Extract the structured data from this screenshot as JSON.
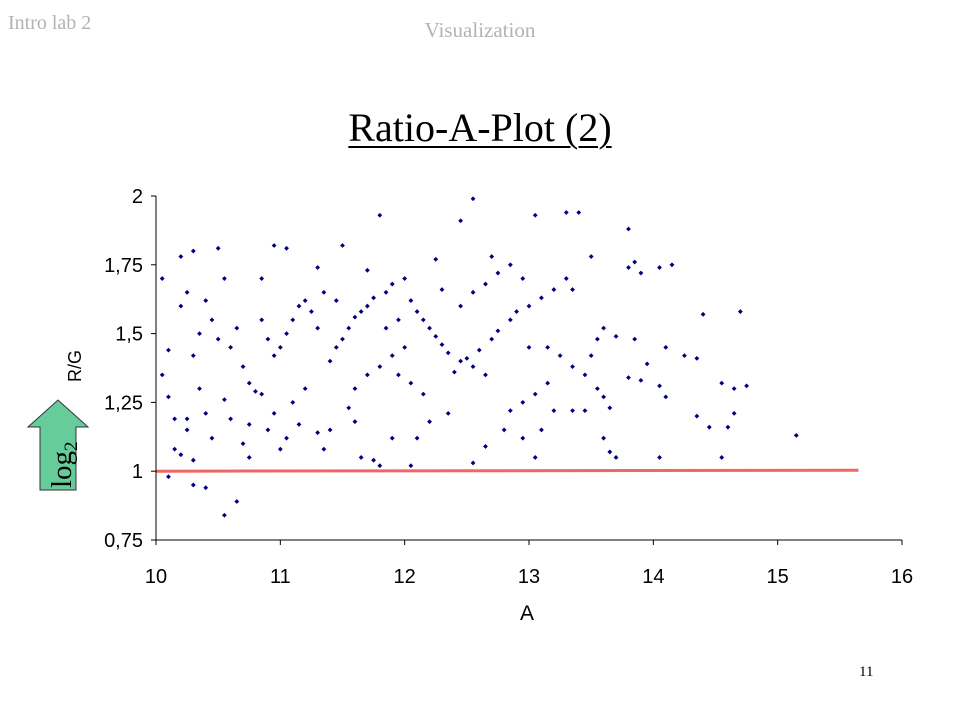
{
  "header": {
    "left": "Intro lab 2",
    "center": "Visualization"
  },
  "title": "Ratio-A-Plot (2)",
  "page_number": "11",
  "arrow": {
    "base": "log",
    "subscript": "2",
    "color": "#66cc99"
  },
  "chart_data": {
    "type": "scatter",
    "xlabel": "A",
    "ylabel": "R/G",
    "xlim": [
      10,
      16
    ],
    "ylim": [
      0.75,
      2
    ],
    "x_ticks": [
      10,
      11,
      12,
      13,
      14,
      15,
      16
    ],
    "y_ticks": [
      0.75,
      1,
      1.25,
      1.5,
      1.75,
      2
    ],
    "x_tick_labels": [
      "10",
      "11",
      "12",
      "13",
      "14",
      "15",
      "16"
    ],
    "y_tick_labels": [
      "0,75",
      "1",
      "1,25",
      "1,5",
      "1,75",
      "2"
    ],
    "grid": false,
    "marker_color": "#000080",
    "reference_line": {
      "y": 1,
      "x_from": 10,
      "x_to": 15.65,
      "color": "#ee6666"
    },
    "points": [
      [
        12.55,
        1.99
      ],
      [
        13.3,
        1.94
      ],
      [
        13.4,
        1.94
      ],
      [
        13.05,
        1.93
      ],
      [
        11.8,
        1.93
      ],
      [
        12.45,
        1.91
      ],
      [
        11.5,
        1.82
      ],
      [
        10.95,
        1.82
      ],
      [
        11.05,
        1.81
      ],
      [
        10.5,
        1.81
      ],
      [
        10.3,
        1.8
      ],
      [
        10.2,
        1.78
      ],
      [
        13.8,
        1.88
      ],
      [
        13.85,
        1.76
      ],
      [
        13.8,
        1.74
      ],
      [
        14.05,
        1.74
      ],
      [
        14.15,
        1.75
      ],
      [
        13.5,
        1.78
      ],
      [
        13.9,
        1.72
      ],
      [
        10.05,
        1.7
      ],
      [
        10.55,
        1.7
      ],
      [
        10.85,
        1.7
      ],
      [
        11.3,
        1.74
      ],
      [
        11.7,
        1.73
      ],
      [
        12.25,
        1.77
      ],
      [
        12.7,
        1.78
      ],
      [
        14.7,
        1.58
      ],
      [
        13.35,
        1.66
      ],
      [
        14.4,
        1.57
      ],
      [
        13.85,
        1.48
      ],
      [
        14.1,
        1.45
      ],
      [
        13.95,
        1.39
      ],
      [
        14.25,
        1.42
      ],
      [
        14.35,
        1.41
      ],
      [
        13.7,
        1.49
      ],
      [
        13.8,
        1.34
      ],
      [
        13.9,
        1.33
      ],
      [
        13.6,
        1.27
      ],
      [
        13.65,
        1.23
      ],
      [
        14.05,
        1.31
      ],
      [
        14.1,
        1.27
      ],
      [
        14.55,
        1.32
      ],
      [
        14.35,
        1.2
      ],
      [
        14.45,
        1.16
      ],
      [
        14.6,
        1.16
      ],
      [
        14.55,
        1.05
      ],
      [
        14.65,
        1.3
      ],
      [
        14.75,
        1.31
      ],
      [
        15.15,
        1.13
      ],
      [
        14.65,
        1.21
      ],
      [
        14.05,
        1.05
      ],
      [
        13.6,
        1.12
      ],
      [
        13.65,
        1.07
      ],
      [
        13.7,
        1.05
      ],
      [
        10.05,
        1.35
      ],
      [
        10.1,
        1.44
      ],
      [
        10.1,
        1.27
      ],
      [
        10.15,
        1.19
      ],
      [
        10.25,
        1.19
      ],
      [
        10.35,
        1.3
      ],
      [
        10.25,
        1.15
      ],
      [
        10.15,
        1.08
      ],
      [
        10.2,
        1.06
      ],
      [
        10.1,
        0.98
      ],
      [
        10.3,
        1.04
      ],
      [
        10.3,
        0.95
      ],
      [
        10.4,
        0.94
      ],
      [
        10.55,
        0.84
      ],
      [
        10.65,
        0.89
      ],
      [
        10.4,
        1.21
      ],
      [
        10.45,
        1.12
      ],
      [
        10.55,
        1.26
      ],
      [
        10.6,
        1.19
      ],
      [
        10.75,
        1.17
      ],
      [
        10.7,
        1.1
      ],
      [
        10.75,
        1.05
      ],
      [
        10.9,
        1.15
      ],
      [
        11.0,
        1.08
      ],
      [
        10.7,
        1.38
      ],
      [
        10.75,
        1.32
      ],
      [
        10.8,
        1.29
      ],
      [
        10.85,
        1.28
      ],
      [
        10.95,
        1.21
      ],
      [
        11.05,
        1.12
      ],
      [
        11.15,
        1.17
      ],
      [
        11.1,
        1.25
      ],
      [
        11.2,
        1.3
      ],
      [
        11.3,
        1.14
      ],
      [
        11.35,
        1.08
      ],
      [
        11.4,
        1.15
      ],
      [
        11.55,
        1.23
      ],
      [
        11.6,
        1.18
      ],
      [
        11.65,
        1.05
      ],
      [
        11.75,
        1.04
      ],
      [
        11.8,
        1.02
      ],
      [
        11.9,
        1.12
      ],
      [
        12.05,
        1.02
      ],
      [
        12.1,
        1.12
      ],
      [
        12.2,
        1.18
      ],
      [
        12.35,
        1.21
      ],
      [
        12.55,
        1.03
      ],
      [
        12.65,
        1.09
      ],
      [
        12.8,
        1.15
      ],
      [
        12.95,
        1.12
      ],
      [
        13.05,
        1.05
      ],
      [
        13.1,
        1.15
      ],
      [
        13.2,
        1.22
      ],
      [
        13.35,
        1.22
      ],
      [
        13.45,
        1.22
      ],
      [
        13.55,
        1.3
      ],
      [
        12.4,
        1.36
      ],
      [
        12.5,
        1.41
      ],
      [
        12.6,
        1.44
      ],
      [
        12.7,
        1.48
      ],
      [
        12.75,
        1.51
      ],
      [
        12.85,
        1.55
      ],
      [
        12.9,
        1.58
      ],
      [
        13.0,
        1.6
      ],
      [
        13.1,
        1.63
      ],
      [
        13.2,
        1.66
      ],
      [
        13.3,
        1.7
      ],
      [
        11.4,
        1.4
      ],
      [
        11.45,
        1.45
      ],
      [
        11.5,
        1.48
      ],
      [
        11.55,
        1.52
      ],
      [
        11.6,
        1.56
      ],
      [
        11.65,
        1.58
      ],
      [
        11.7,
        1.6
      ],
      [
        11.75,
        1.63
      ],
      [
        11.85,
        1.65
      ],
      [
        11.9,
        1.68
      ],
      [
        12.0,
        1.7
      ],
      [
        12.05,
        1.62
      ],
      [
        12.1,
        1.58
      ],
      [
        12.15,
        1.55
      ],
      [
        12.2,
        1.52
      ],
      [
        12.25,
        1.49
      ],
      [
        12.3,
        1.46
      ],
      [
        12.35,
        1.43
      ],
      [
        12.45,
        1.4
      ],
      [
        12.55,
        1.38
      ],
      [
        12.65,
        1.35
      ],
      [
        11.0,
        1.45
      ],
      [
        11.05,
        1.5
      ],
      [
        11.1,
        1.55
      ],
      [
        11.15,
        1.6
      ],
      [
        11.2,
        1.62
      ],
      [
        10.85,
        1.55
      ],
      [
        10.9,
        1.48
      ],
      [
        10.95,
        1.42
      ],
      [
        10.6,
        1.45
      ],
      [
        10.65,
        1.52
      ],
      [
        10.45,
        1.55
      ],
      [
        10.5,
        1.48
      ],
      [
        10.35,
        1.5
      ],
      [
        10.3,
        1.42
      ],
      [
        10.2,
        1.6
      ],
      [
        10.25,
        1.65
      ],
      [
        10.4,
        1.62
      ],
      [
        13.15,
        1.45
      ],
      [
        13.25,
        1.42
      ],
      [
        13.35,
        1.38
      ],
      [
        13.45,
        1.35
      ],
      [
        13.5,
        1.42
      ],
      [
        13.55,
        1.48
      ],
      [
        13.6,
        1.52
      ],
      [
        13.15,
        1.32
      ],
      [
        13.05,
        1.28
      ],
      [
        12.95,
        1.25
      ],
      [
        12.85,
        1.22
      ],
      [
        11.6,
        1.3
      ],
      [
        11.7,
        1.35
      ],
      [
        11.8,
        1.38
      ],
      [
        11.9,
        1.42
      ],
      [
        12.0,
        1.45
      ],
      [
        11.3,
        1.52
      ],
      [
        11.25,
        1.58
      ],
      [
        11.85,
        1.52
      ],
      [
        11.95,
        1.55
      ],
      [
        12.45,
        1.6
      ],
      [
        12.55,
        1.65
      ],
      [
        12.65,
        1.68
      ],
      [
        12.75,
        1.72
      ],
      [
        12.85,
        1.75
      ],
      [
        12.95,
        1.7
      ],
      [
        13.0,
        1.45
      ],
      [
        12.15,
        1.28
      ],
      [
        12.05,
        1.32
      ],
      [
        11.95,
        1.35
      ],
      [
        12.3,
        1.66
      ],
      [
        11.45,
        1.62
      ],
      [
        11.35,
        1.65
      ]
    ]
  }
}
